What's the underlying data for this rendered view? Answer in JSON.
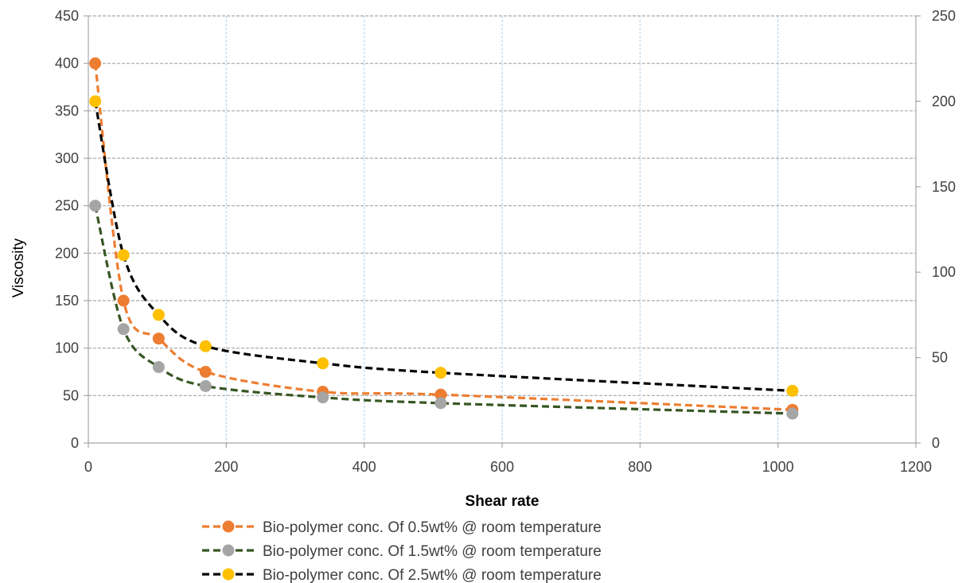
{
  "chart_data": {
    "type": "scatter",
    "title": "",
    "xlabel": "Shear rate",
    "ylabel": "Viscosity",
    "y2label": "",
    "xlim": [
      0,
      1200
    ],
    "ylim": [
      0,
      450
    ],
    "y2lim": [
      0,
      250
    ],
    "x_ticks": [
      0,
      200,
      400,
      600,
      800,
      1000,
      1200
    ],
    "y_ticks": [
      0,
      50,
      100,
      150,
      200,
      250,
      300,
      350,
      400,
      450
    ],
    "y2_ticks": [
      0,
      50,
      100,
      150,
      200,
      250
    ],
    "grid": true,
    "legend_position": "bottom",
    "series": [
      {
        "name": "Bio-polymer conc. Of 0.5wt% @ room temperature",
        "color": "#ED7D31",
        "line_style": "dashed",
        "x": [
          10,
          51,
          102,
          170,
          340,
          511,
          1021
        ],
        "y": [
          400,
          150,
          110,
          75,
          54,
          51,
          35
        ]
      },
      {
        "name": "Bio-polymer conc. Of  1.5wt% @ room temperature",
        "color": "#A5A5A5",
        "line_color": "#375623",
        "line_style": "dashed",
        "x": [
          10,
          51,
          102,
          170,
          340,
          511,
          1021
        ],
        "y": [
          250,
          120,
          80,
          60,
          48,
          42,
          31
        ]
      },
      {
        "name": "Bio-polymer conc. Of 2.5wt% @ room temperature",
        "color": "#FFC000",
        "line_color": "#000000",
        "line_style": "dashed",
        "x": [
          10,
          51,
          102,
          170,
          340,
          511,
          1021
        ],
        "y": [
          360,
          198,
          135,
          102,
          84,
          74,
          55
        ]
      }
    ]
  }
}
